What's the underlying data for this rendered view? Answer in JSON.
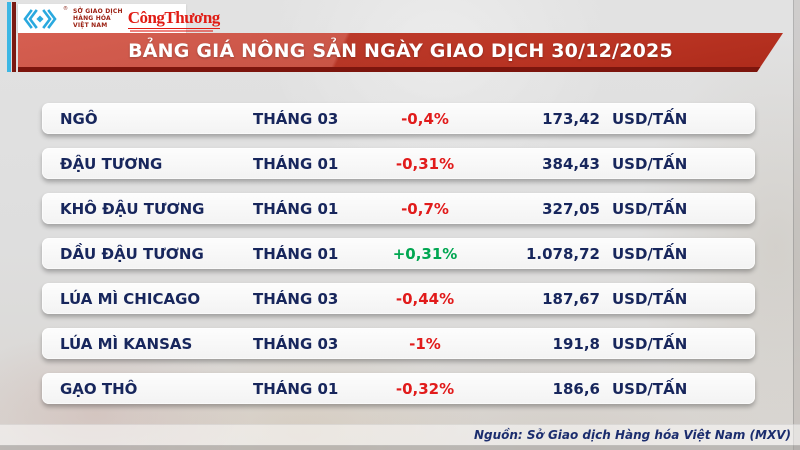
{
  "header": {
    "title": "BẢNG GIÁ NÔNG SẢN NGÀY GIAO DỊCH 30/12/2025",
    "logos": {
      "mxv": {
        "line1": "SỞ GIAO DỊCH",
        "line2": "HÀNG HÓA",
        "line3": "VIỆT NAM",
        "trademark": "®"
      },
      "cong_thuong": {
        "text": "CôngThương"
      }
    }
  },
  "chart_data": {
    "type": "table",
    "title": "BẢNG GIÁ NÔNG SẢN NGÀY GIAO DỊCH 30/12/2025",
    "rows": [
      {
        "commodity": "NGÔ",
        "month": "THÁNG 03",
        "change": "-0,4%",
        "price": "173,42",
        "unit": "USD/TẤN",
        "direction": "down"
      },
      {
        "commodity": "ĐẬU TƯƠNG",
        "month": "THÁNG 01",
        "change": "-0,31%",
        "price": "384,43",
        "unit": "USD/TẤN",
        "direction": "down"
      },
      {
        "commodity": "KHÔ ĐẬU TƯƠNG",
        "month": "THÁNG 01",
        "change": "-0,7%",
        "price": "327,05",
        "unit": "USD/TẤN",
        "direction": "down"
      },
      {
        "commodity": "DẦU ĐẬU TƯƠNG",
        "month": "THÁNG 01",
        "change": "+0,31%",
        "price": "1.078,72",
        "unit": "USD/TẤN",
        "direction": "up"
      },
      {
        "commodity": "LÚA MÌ CHICAGO",
        "month": "THÁNG 03",
        "change": "-0,44%",
        "price": "187,67",
        "unit": "USD/TẤN",
        "direction": "down"
      },
      {
        "commodity": "LÚA MÌ KANSAS",
        "month": "THÁNG 03",
        "change": "-1%",
        "price": "191,8",
        "unit": "USD/TẤN",
        "direction": "down"
      },
      {
        "commodity": "GẠO THÔ",
        "month": "THÁNG 01",
        "change": "-0,32%",
        "price": "186,6",
        "unit": "USD/TẤN",
        "direction": "down"
      }
    ]
  },
  "source": "Nguồn: Sở Giao dịch Hàng hóa Việt Nam (MXV)",
  "colors": {
    "negative": "#e11b1b",
    "positive": "#00a651",
    "text_navy": "#17265c",
    "banner_red": "#b92b1b",
    "accent_cyan": "#3db7e4",
    "accent_maroon": "#7a1a12"
  }
}
